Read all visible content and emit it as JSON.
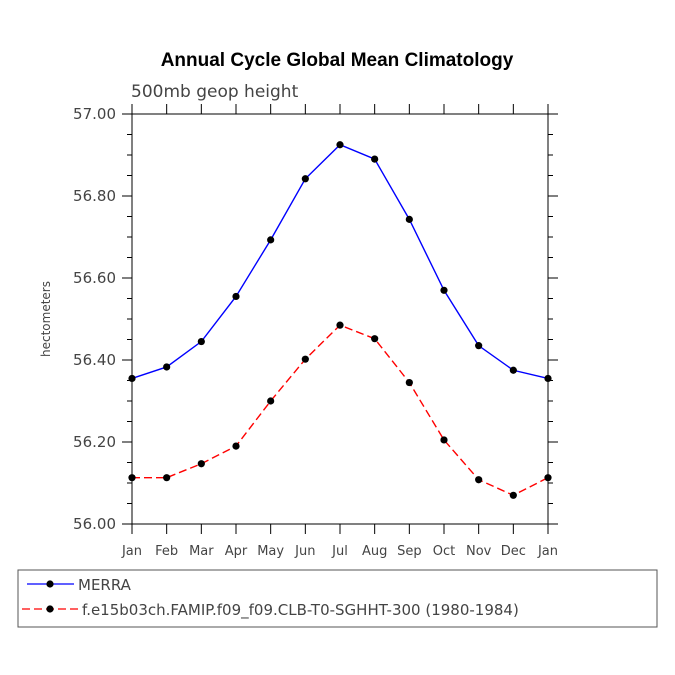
{
  "chart_data": {
    "type": "line",
    "title": "Annual Cycle Global Mean Climatology",
    "subtitle": "500mb geop height",
    "ylabel": "hectometers",
    "xlabel": "",
    "categories": [
      "Jan",
      "Feb",
      "Mar",
      "Apr",
      "May",
      "Jun",
      "Jul",
      "Aug",
      "Sep",
      "Oct",
      "Nov",
      "Dec",
      "Jan"
    ],
    "ylim": [
      56.0,
      57.0
    ],
    "yticks": [
      "56.00",
      "56.20",
      "56.40",
      "56.60",
      "56.80",
      "57.00"
    ],
    "grid": false,
    "legend_position": "bottom",
    "series": [
      {
        "name": "MERRA",
        "color": "#0000ff",
        "line_style": "solid",
        "marker": "filled-circle",
        "values": [
          56.355,
          56.383,
          56.445,
          56.555,
          56.693,
          56.842,
          56.925,
          56.89,
          56.743,
          56.57,
          56.435,
          56.375,
          56.355
        ]
      },
      {
        "name": "f.e15b03ch.FAMIP.f09_f09.CLB-T0-SGHHT-300 (1980-1984)",
        "color": "#ff0000",
        "line_style": "dashed",
        "marker": "filled-circle",
        "values": [
          56.113,
          56.113,
          56.147,
          56.19,
          56.3,
          56.402,
          56.485,
          56.452,
          56.345,
          56.205,
          56.108,
          56.07,
          56.113
        ]
      }
    ]
  }
}
